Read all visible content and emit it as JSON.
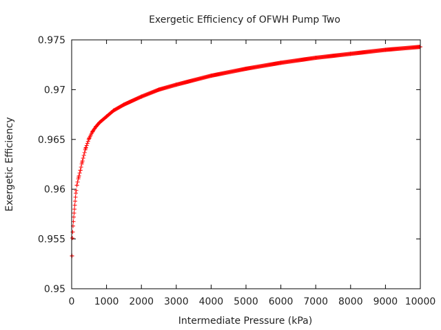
{
  "chart_data": {
    "type": "scatter",
    "title": "Exergetic Efficiency of OFWH Pump Two",
    "xlabel": "Intermediate Pressure (kPa)",
    "ylabel": "Exergetic Efficiency",
    "xlim": [
      0,
      10000
    ],
    "ylim": [
      0.95,
      0.975
    ],
    "xticks": [
      0,
      1000,
      2000,
      3000,
      4000,
      5000,
      6000,
      7000,
      8000,
      9000,
      10000
    ],
    "xtick_labels": [
      "0",
      "1000",
      "2000",
      "3000",
      "4000",
      "5000",
      "6000",
      "7000",
      "8000",
      "9000",
      "10000"
    ],
    "yticks": [
      0.95,
      0.955,
      0.96,
      0.965,
      0.97,
      0.975
    ],
    "ytick_labels": [
      "0.95",
      "0.955",
      "0.96",
      "0.965",
      "0.97",
      "0.975"
    ],
    "grid": false,
    "legend": "none",
    "marker": "+",
    "series": [
      {
        "color": "#ff0000",
        "x": [
          10,
          20,
          40,
          60,
          80,
          100,
          120,
          150,
          200,
          250,
          300,
          400,
          500,
          600,
          700,
          800,
          1000,
          1200,
          1500,
          2000,
          2500,
          3000,
          4000,
          5000,
          6000,
          7000,
          8000,
          9000,
          10000
        ],
        "y": [
          0.9533,
          0.9551,
          0.9563,
          0.9572,
          0.958,
          0.9588,
          0.9596,
          0.9604,
          0.9612,
          0.9619,
          0.9627,
          0.9641,
          0.9651,
          0.9658,
          0.9663,
          0.9667,
          0.9673,
          0.9679,
          0.9685,
          0.9693,
          0.97,
          0.9705,
          0.9714,
          0.9721,
          0.9727,
          0.9732,
          0.9736,
          0.974,
          0.9743
        ]
      }
    ]
  }
}
